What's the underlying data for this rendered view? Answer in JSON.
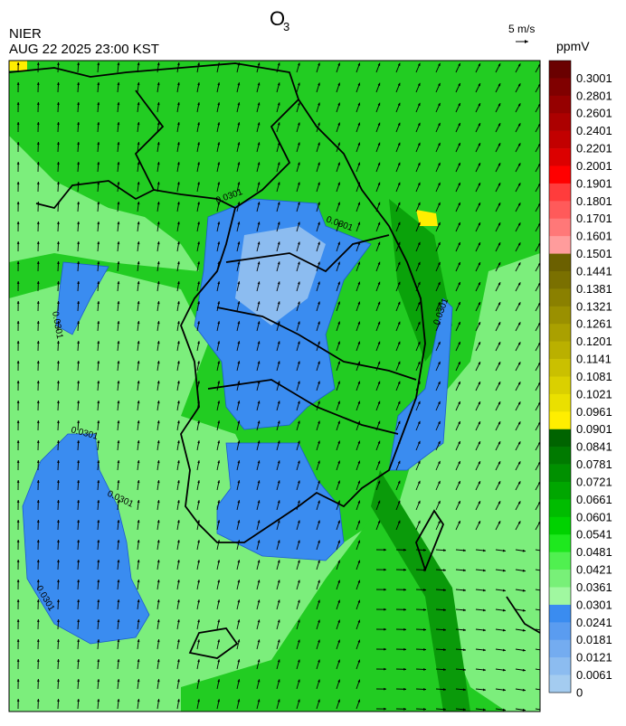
{
  "header": {
    "agency": "NIER",
    "title": "O",
    "title_subscript": "3",
    "timestamp": "AUG 22 2025 23:00 KST"
  },
  "wind_scale": {
    "label": "5 m/s"
  },
  "map": {
    "contour_labels": [
      "0.0301",
      "0.0301",
      "0.0301",
      "0.0301",
      "0.0301",
      "0.0301",
      "0.0301"
    ]
  },
  "colorbar": {
    "unit": "ppmV",
    "labels": [
      0.3001,
      0.2801,
      0.2601,
      0.2401,
      0.2201,
      0.2001,
      0.1901,
      0.1801,
      0.1701,
      0.1601,
      0.1501,
      0.1441,
      0.1381,
      0.1321,
      0.1261,
      0.1201,
      0.1141,
      0.1081,
      0.1021,
      0.0961,
      0.0901,
      0.0841,
      0.0781,
      0.0721,
      0.0661,
      0.0601,
      0.0541,
      0.0481,
      0.0421,
      0.0361,
      0.0301,
      0.0241,
      0.0181,
      0.0121,
      0.0061,
      0
    ],
    "colors": [
      "#6a0000",
      "#800000",
      "#960000",
      "#ac0000",
      "#c20000",
      "#dc0000",
      "#ff0000",
      "#ff3c3c",
      "#ff5a5a",
      "#ff7878",
      "#ff9c9c",
      "#6b6000",
      "#7a7000",
      "#8a8000",
      "#9a9000",
      "#aaa000",
      "#bab000",
      "#cac000",
      "#dad000",
      "#eae000",
      "#ffee00",
      "#006400",
      "#007a00",
      "#009000",
      "#00a600",
      "#00bc00",
      "#00d200",
      "#1ee81e",
      "#50f050",
      "#78f078",
      "#a0f8a0",
      "#3a8cf0",
      "#5a9cf0",
      "#74acf0",
      "#8cbcf0",
      "#a4ccf0"
    ]
  }
}
